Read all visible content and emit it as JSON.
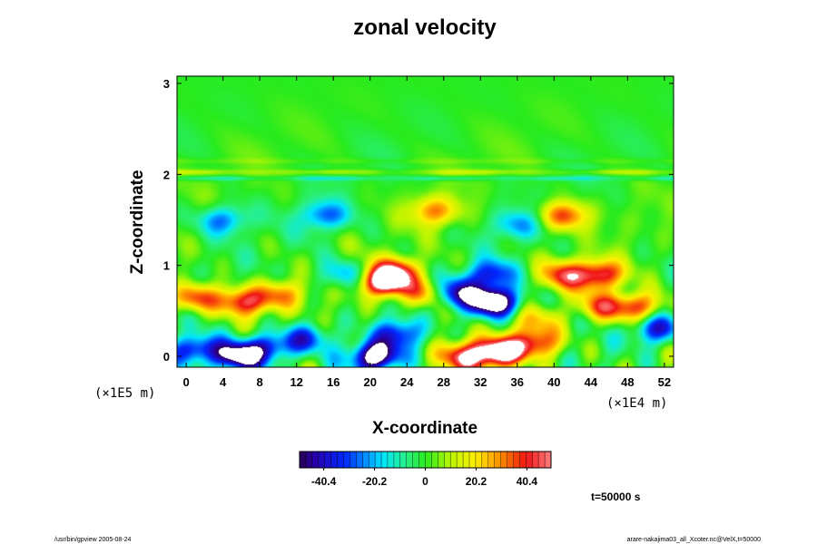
{
  "chart_data": {
    "type": "heatmap",
    "title": "zonal velocity",
    "xlabel": "X-coordinate",
    "ylabel": "Z-coordinate",
    "x_ticks": [
      "0",
      "4",
      "8",
      "12",
      "16",
      "20",
      "24",
      "28",
      "32",
      "36",
      "40",
      "44",
      "48",
      "52"
    ],
    "y_ticks": [
      "0",
      "1",
      "2",
      "3"
    ],
    "x_scale_label": "(×1E4 m)",
    "y_scale_label": "(×1E5 m)",
    "xlim": [
      -1,
      53
    ],
    "ylim": [
      -0.12,
      3.08
    ],
    "colorbar": {
      "ticks": [
        "-40.4",
        "-20.2",
        "0",
        "20.2",
        "40.4"
      ],
      "tick_values": [
        -40.4,
        -20.2,
        0,
        20.2,
        40.4
      ],
      "range": [
        -50,
        50
      ]
    },
    "time_label": "t=50000 s",
    "features": [
      {
        "x": 1,
        "z": 0.65,
        "value": 38
      },
      {
        "x": 6,
        "z": 0.6,
        "value": 42
      },
      {
        "x": 10,
        "z": 0.68,
        "value": 30
      },
      {
        "x": 5.5,
        "z": 0.0,
        "value": -60
      },
      {
        "x": 1,
        "z": 0.08,
        "value": -42
      },
      {
        "x": 9,
        "z": 0.1,
        "value": -38
      },
      {
        "x": 13,
        "z": 0.2,
        "value": -30
      },
      {
        "x": 21.5,
        "z": 0.82,
        "value": 60
      },
      {
        "x": 23,
        "z": 0.95,
        "value": 35
      },
      {
        "x": 26,
        "z": 0.7,
        "value": 28
      },
      {
        "x": 33.5,
        "z": 0.6,
        "value": -70
      },
      {
        "x": 29.5,
        "z": 0.7,
        "value": -42
      },
      {
        "x": 33,
        "z": 0.9,
        "value": -35
      },
      {
        "x": 34,
        "z": 0.05,
        "value": 65
      },
      {
        "x": 30,
        "z": 0.0,
        "value": 45
      },
      {
        "x": 38,
        "z": 0.15,
        "value": 40
      },
      {
        "x": 20.5,
        "z": 0.0,
        "value": -62
      },
      {
        "x": 23,
        "z": 0.25,
        "value": -35
      },
      {
        "x": 41,
        "z": 0.9,
        "value": 35
      },
      {
        "x": 45,
        "z": 0.9,
        "value": 45
      },
      {
        "x": 49,
        "z": 0.55,
        "value": 42
      },
      {
        "x": 51,
        "z": 0.3,
        "value": -35
      },
      {
        "x": 45,
        "z": 0.55,
        "value": 30
      },
      {
        "x": 41,
        "z": 1.55,
        "value": 38
      },
      {
        "x": 27,
        "z": 1.6,
        "value": 30
      },
      {
        "x": 4,
        "z": 1.5,
        "value": -28
      },
      {
        "x": 15,
        "z": 1.55,
        "value": -28
      },
      {
        "x": 36,
        "z": 1.45,
        "value": -22
      },
      {
        "x": 17,
        "z": 0.9,
        "value": -22
      },
      {
        "x": 38,
        "z": 0.4,
        "value": 18
      }
    ]
  },
  "footer": {
    "left": "/usr/bin/gpview 2005-08-24",
    "right": "arare-nakajima03_all_Xcoter.nc@VelX,t=50000"
  }
}
